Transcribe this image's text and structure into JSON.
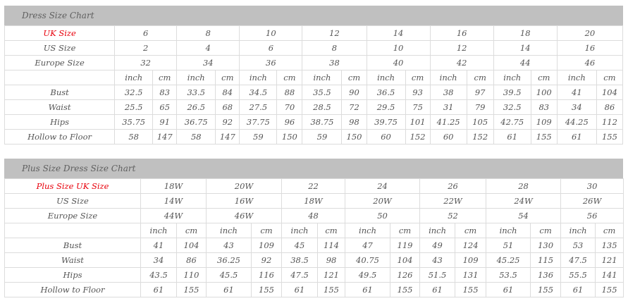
{
  "accent_color": "#e8000b",
  "charts": [
    {
      "title": "Dress Size Chart",
      "size_rows": [
        {
          "label": "UK Size",
          "highlight": true,
          "values": [
            "6",
            "8",
            "10",
            "12",
            "14",
            "16",
            "18",
            "20"
          ]
        },
        {
          "label": "US Size",
          "values": [
            "2",
            "4",
            "6",
            "8",
            "10",
            "12",
            "14",
            "16"
          ]
        },
        {
          "label": "Europe Size",
          "values": [
            "32",
            "34",
            "36",
            "38",
            "40",
            "42",
            "44",
            "46"
          ]
        }
      ],
      "unit_labels": [
        "inch",
        "cm"
      ],
      "measure_rows": [
        {
          "label": "Bust",
          "values": [
            "32.5",
            "83",
            "33.5",
            "84",
            "34.5",
            "88",
            "35.5",
            "90",
            "36.5",
            "93",
            "38",
            "97",
            "39.5",
            "100",
            "41",
            "104"
          ]
        },
        {
          "label": "Waist",
          "values": [
            "25.5",
            "65",
            "26.5",
            "68",
            "27.5",
            "70",
            "28.5",
            "72",
            "29.5",
            "75",
            "31",
            "79",
            "32.5",
            "83",
            "34",
            "86"
          ]
        },
        {
          "label": "Hips",
          "values": [
            "35.75",
            "91",
            "36.75",
            "92",
            "37.75",
            "96",
            "38.75",
            "98",
            "39.75",
            "101",
            "41.25",
            "105",
            "42.75",
            "109",
            "44.25",
            "112"
          ]
        },
        {
          "label": "Hollow to Floor",
          "values": [
            "58",
            "147",
            "58",
            "147",
            "59",
            "150",
            "59",
            "150",
            "60",
            "152",
            "60",
            "152",
            "61",
            "155",
            "61",
            "155"
          ]
        }
      ]
    },
    {
      "title": "Plus Size Dress Size Chart",
      "size_rows": [
        {
          "label": "Plus Size UK Size",
          "highlight": true,
          "values": [
            "18W",
            "20W",
            "22",
            "24",
            "26",
            "28",
            "30"
          ]
        },
        {
          "label": "US Size",
          "values": [
            "14W",
            "16W",
            "18W",
            "20W",
            "22W",
            "24W",
            "26W"
          ]
        },
        {
          "label": "Europe Size",
          "values": [
            "44W",
            "46W",
            "48",
            "50",
            "52",
            "54",
            "56"
          ]
        }
      ],
      "unit_labels": [
        "inch",
        "cm"
      ],
      "measure_rows": [
        {
          "label": "Bust",
          "values": [
            "41",
            "104",
            "43",
            "109",
            "45",
            "114",
            "47",
            "119",
            "49",
            "124",
            "51",
            "130",
            "53",
            "135"
          ]
        },
        {
          "label": "Waist",
          "values": [
            "34",
            "86",
            "36.25",
            "92",
            "38.5",
            "98",
            "40.75",
            "104",
            "43",
            "109",
            "45.25",
            "115",
            "47.5",
            "121"
          ]
        },
        {
          "label": "Hips",
          "values": [
            "43.5",
            "110",
            "45.5",
            "116",
            "47.5",
            "121",
            "49.5",
            "126",
            "51.5",
            "131",
            "53.5",
            "136",
            "55.5",
            "141"
          ]
        },
        {
          "label": "Hollow to Floor",
          "values": [
            "61",
            "155",
            "61",
            "155",
            "61",
            "155",
            "61",
            "155",
            "61",
            "155",
            "61",
            "155",
            "61",
            "155"
          ]
        }
      ]
    }
  ]
}
